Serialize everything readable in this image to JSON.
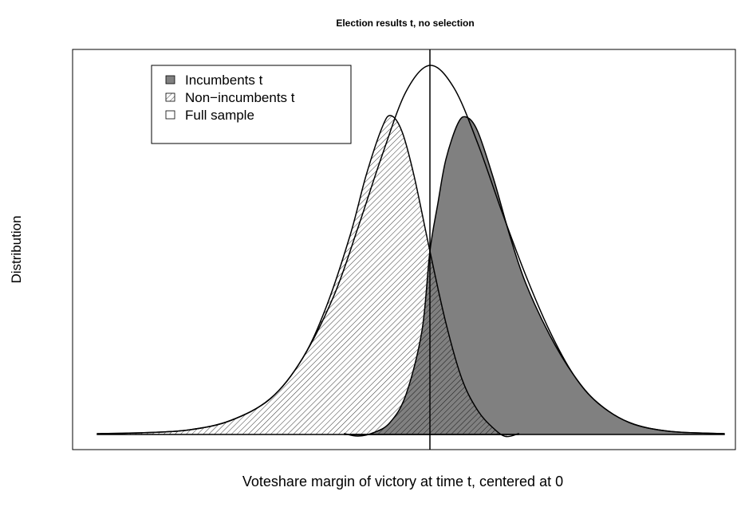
{
  "chart_data": {
    "type": "area",
    "title": "Election results t, no selection",
    "xlabel": "Voteshare margin of victory at time t, centered at 0",
    "ylabel": "Distribution",
    "xlim": [
      -0.448,
      0.383
    ],
    "ylim": [
      -0.38,
      9.66
    ],
    "vline": 0,
    "series": [
      {
        "name": "Incumbents t",
        "color": "#000000",
        "fill": "#808080",
        "pattern": "none",
        "x": [
          -0.107,
          -0.09,
          -0.07,
          -0.05,
          -0.03,
          -0.01,
          0,
          0.01,
          0.02,
          0.035,
          0.046,
          0.06,
          0.08,
          0.1,
          0.12,
          0.15,
          0.18,
          0.21,
          0.25,
          0.3,
          0.369
        ],
        "values": [
          0.02,
          -0.04,
          0.05,
          0.3,
          1.0,
          2.6,
          4.6,
          5.8,
          6.9,
          7.8,
          7.96,
          7.6,
          6.4,
          5.0,
          3.8,
          2.5,
          1.5,
          0.8,
          0.3,
          0.08,
          0.02
        ]
      },
      {
        "name": "Non−incumbents t",
        "color": "#000000",
        "fill": "#ffffff",
        "pattern": "hatch",
        "x": [
          -0.417,
          -0.35,
          -0.3,
          -0.25,
          -0.2,
          -0.16,
          -0.13,
          -0.1,
          -0.08,
          -0.06,
          -0.049,
          -0.035,
          -0.02,
          0,
          0.02,
          0.04,
          0.06,
          0.08,
          0.095,
          0.111
        ],
        "values": [
          0.02,
          0.05,
          0.12,
          0.35,
          0.9,
          1.9,
          3.2,
          5.0,
          6.5,
          7.7,
          8.0,
          7.6,
          6.5,
          4.6,
          2.8,
          1.4,
          0.6,
          0.15,
          -0.05,
          0.02
        ]
      },
      {
        "name": "Full sample",
        "color": "#000000",
        "fill": "none",
        "pattern": "none",
        "x": [
          -0.417,
          -0.35,
          -0.3,
          -0.25,
          -0.2,
          -0.16,
          -0.12,
          -0.09,
          -0.06,
          -0.03,
          0,
          0.03,
          0.06,
          0.09,
          0.12,
          0.15,
          0.18,
          0.21,
          0.25,
          0.3,
          0.369
        ],
        "values": [
          0.02,
          0.05,
          0.12,
          0.35,
          0.9,
          1.9,
          3.5,
          5.2,
          7.0,
          8.6,
          9.26,
          8.7,
          7.3,
          5.6,
          4.0,
          2.6,
          1.5,
          0.8,
          0.3,
          0.08,
          0.02
        ]
      }
    ],
    "legend": "top-left"
  }
}
